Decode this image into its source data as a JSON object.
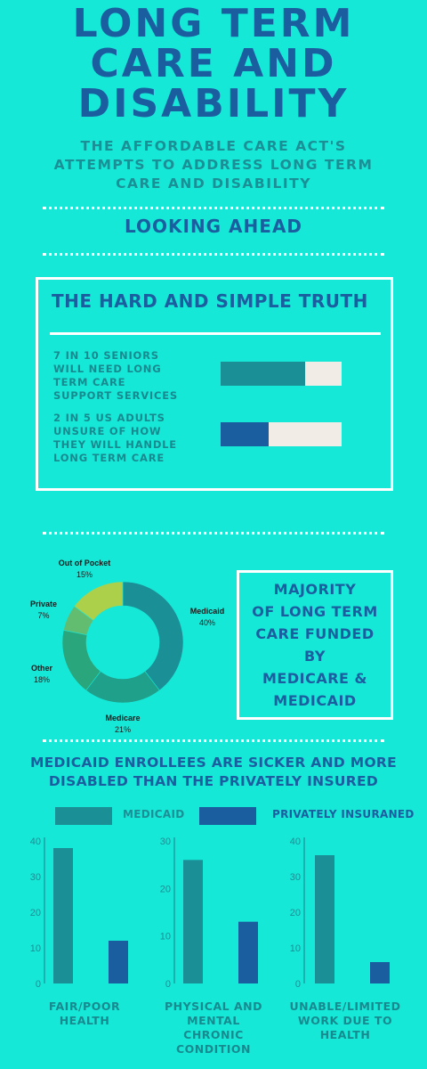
{
  "header": {
    "title_lines": [
      "LONG TERM",
      "CARE AND",
      "DISABILITY"
    ],
    "subtitle_lines": [
      "THE AFFORDABLE CARE ACT'S",
      "ATTEMPTS TO ADDRESS LONG TERM",
      "CARE AND DISABILITY"
    ]
  },
  "looking_ahead": "LOOKING AHEAD",
  "truth": {
    "title": "THE HARD AND SIMPLE TRUTH",
    "stats": [
      {
        "lines": [
          "7 IN 10 SENIORS",
          "WILL NEED LONG",
          "TERM CARE",
          "SUPPORT SERVICES"
        ],
        "numerator": 7,
        "denominator": 10,
        "fill_color": "#1a8f95",
        "empty_color": "#f1ede6"
      },
      {
        "lines": [
          "2 IN 5 US ADULTS",
          "UNSURE OF HOW",
          "THEY WILL HANDLE",
          "LONG TERM CARE"
        ],
        "numerator": 2,
        "denominator": 5,
        "fill_color": "#1b5ea0",
        "empty_color": "#f1ede6"
      }
    ]
  },
  "funded_box": {
    "lines": [
      "MAJORITY",
      "OF LONG TERM",
      "CARE FUNDED BY",
      "MEDICARE &",
      "MEDICAID"
    ]
  },
  "sicker_title_lines": [
    "MEDICAID ENROLLEES ARE SICKER AND MORE",
    "DISABLED THAN THE PRIVATELY INSURED"
  ],
  "legend": {
    "medicaid": {
      "label": "MEDICAID",
      "color": "#1a8f95",
      "text_color": "#1a8f95"
    },
    "private": {
      "label": "PRIVATELY INSURANED",
      "color": "#1b5ea0",
      "text_color": "#1b5ea0"
    }
  },
  "chart_data": [
    {
      "type": "pie",
      "slices": [
        {
          "label": "Medicaid",
          "value": 40,
          "value_label": "40%",
          "color": "#1a8f95"
        },
        {
          "label": "Medicare",
          "value": 21,
          "value_label": "21%",
          "color": "#1fa08a"
        },
        {
          "label": "Other",
          "value": 18,
          "value_label": "18%",
          "color": "#2aa67c"
        },
        {
          "label": "Private",
          "value": 7,
          "value_label": "7%",
          "color": "#62bd71"
        },
        {
          "label": "Out of Pocket",
          "value": 15,
          "value_label": "15%",
          "color": "#acd04a"
        }
      ]
    },
    {
      "type": "bar",
      "categories": [
        {
          "lines": [
            "FAIR/POOR",
            "HEALTH"
          ]
        },
        {
          "lines": [
            "PHYSICAL AND",
            "MENTAL",
            "CHRONIC",
            "CONDITION"
          ]
        },
        {
          "lines": [
            "UNABLE/LIMITED",
            "WORK DUE TO",
            "HEALTH"
          ]
        }
      ],
      "series": [
        {
          "name": "MEDICAID",
          "values": [
            38,
            26,
            36
          ],
          "color": "#1a8f95"
        },
        {
          "name": "PRIVATELY INSURANED",
          "values": [
            12,
            13,
            6
          ],
          "color": "#1b5ea0"
        }
      ],
      "panels": [
        {
          "ylim": [
            0,
            40
          ],
          "ticks": [
            0,
            10,
            20,
            30,
            40
          ]
        },
        {
          "ylim": [
            0,
            30
          ],
          "ticks": [
            0,
            10,
            20,
            30
          ]
        },
        {
          "ylim": [
            0,
            40
          ],
          "ticks": [
            0,
            10,
            20,
            30,
            40
          ]
        }
      ]
    }
  ]
}
